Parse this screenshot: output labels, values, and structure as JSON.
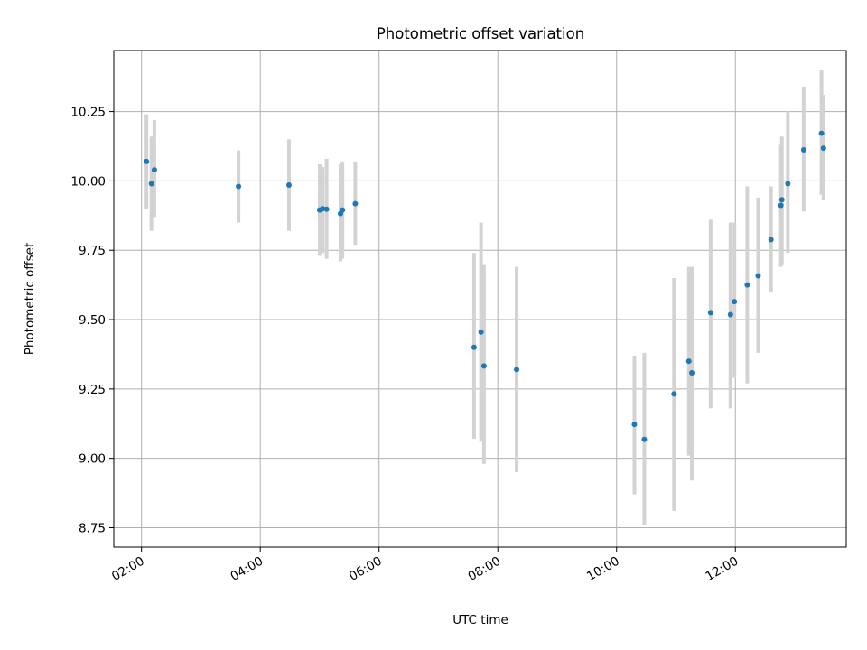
{
  "chart_data": {
    "type": "scatter",
    "title": "Photometric offset variation",
    "xlabel": "UTC time",
    "ylabel": "Photometric offset",
    "x_ticks": [
      "02:00",
      "04:00",
      "06:00",
      "08:00",
      "10:00",
      "12:00"
    ],
    "y_ticks": [
      "8.75",
      "9.00",
      "9.25",
      "9.50",
      "9.75",
      "10.00",
      "10.25"
    ],
    "xlim": [
      "01:32",
      "13:52"
    ],
    "ylim": [
      8.68,
      10.47
    ],
    "grid": true,
    "marker_color": "#1f77b4",
    "errorbar_color": "#d3d3d3",
    "points": [
      {
        "t": "02:05",
        "y": 10.07,
        "lo": 9.9,
        "hi": 10.24
      },
      {
        "t": "02:10",
        "y": 9.99,
        "lo": 9.82,
        "hi": 10.16
      },
      {
        "t": "02:13",
        "y": 10.04,
        "lo": 9.87,
        "hi": 10.22
      },
      {
        "t": "03:38",
        "y": 9.98,
        "lo": 9.85,
        "hi": 10.11
      },
      {
        "t": "04:29",
        "y": 9.985,
        "lo": 9.82,
        "hi": 10.15
      },
      {
        "t": "05:00",
        "y": 9.895,
        "lo": 9.73,
        "hi": 10.06
      },
      {
        "t": "05:03",
        "y": 9.9,
        "lo": 9.74,
        "hi": 10.05
      },
      {
        "t": "05:07",
        "y": 9.898,
        "lo": 9.72,
        "hi": 10.08
      },
      {
        "t": "05:21",
        "y": 9.882,
        "lo": 9.71,
        "hi": 10.06
      },
      {
        "t": "05:23",
        "y": 9.895,
        "lo": 9.72,
        "hi": 10.07
      },
      {
        "t": "05:36",
        "y": 9.918,
        "lo": 9.77,
        "hi": 10.07
      },
      {
        "t": "07:36",
        "y": 9.4,
        "lo": 9.07,
        "hi": 9.74
      },
      {
        "t": "07:43",
        "y": 9.455,
        "lo": 9.06,
        "hi": 9.85
      },
      {
        "t": "07:46",
        "y": 9.333,
        "lo": 8.98,
        "hi": 9.7
      },
      {
        "t": "08:19",
        "y": 9.32,
        "lo": 8.95,
        "hi": 9.69
      },
      {
        "t": "10:18",
        "y": 9.122,
        "lo": 8.87,
        "hi": 9.37
      },
      {
        "t": "10:28",
        "y": 9.068,
        "lo": 8.76,
        "hi": 9.38
      },
      {
        "t": "10:58",
        "y": 9.232,
        "lo": 8.81,
        "hi": 9.65
      },
      {
        "t": "11:13",
        "y": 9.35,
        "lo": 9.01,
        "hi": 9.69
      },
      {
        "t": "11:16",
        "y": 9.308,
        "lo": 8.92,
        "hi": 9.69
      },
      {
        "t": "11:35",
        "y": 9.525,
        "lo": 9.18,
        "hi": 9.86
      },
      {
        "t": "11:55",
        "y": 9.518,
        "lo": 9.18,
        "hi": 9.85
      },
      {
        "t": "11:59",
        "y": 9.565,
        "lo": 9.29,
        "hi": 9.85
      },
      {
        "t": "12:12",
        "y": 9.625,
        "lo": 9.27,
        "hi": 9.98
      },
      {
        "t": "12:23",
        "y": 9.658,
        "lo": 9.38,
        "hi": 9.94
      },
      {
        "t": "12:36",
        "y": 9.788,
        "lo": 9.6,
        "hi": 9.98
      },
      {
        "t": "12:46",
        "y": 9.912,
        "lo": 9.69,
        "hi": 10.13
      },
      {
        "t": "12:47",
        "y": 9.932,
        "lo": 9.7,
        "hi": 10.16
      },
      {
        "t": "12:53",
        "y": 9.99,
        "lo": 9.74,
        "hi": 10.25
      },
      {
        "t": "13:09",
        "y": 10.112,
        "lo": 9.89,
        "hi": 10.34
      },
      {
        "t": "13:27",
        "y": 10.172,
        "lo": 9.95,
        "hi": 10.4
      },
      {
        "t": "13:29",
        "y": 10.118,
        "lo": 9.93,
        "hi": 10.31
      }
    ]
  }
}
